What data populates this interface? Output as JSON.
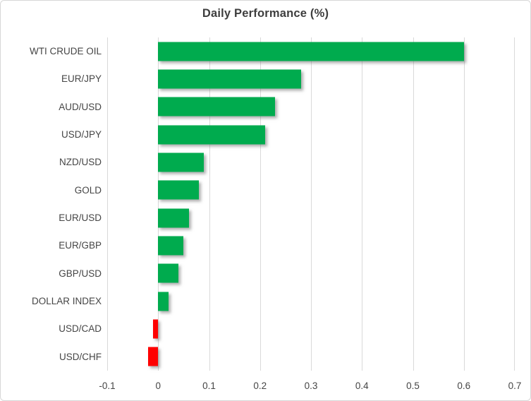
{
  "frame": {
    "background": "#ffffff",
    "border_color": "#d7d7d7"
  },
  "chart_data": {
    "type": "bar",
    "orientation": "horizontal",
    "title": "Daily Performance (%)",
    "categories": [
      "WTI CRUDE OIL",
      "EUR/JPY",
      "AUD/USD",
      "USD/JPY",
      "NZD/USD",
      "GOLD",
      "EUR/USD",
      "EUR/GBP",
      "GBP/USD",
      "DOLLAR INDEX",
      "USD/CAD",
      "USD/CHF"
    ],
    "values": [
      0.6,
      0.28,
      0.23,
      0.21,
      0.09,
      0.08,
      0.06,
      0.05,
      0.04,
      0.02,
      -0.01,
      -0.02
    ],
    "xlim": [
      -0.1,
      0.7
    ],
    "x_ticks": [
      -0.1,
      0,
      0.1,
      0.2,
      0.3,
      0.4,
      0.5,
      0.6,
      0.7
    ],
    "x_tick_labels": [
      "-0.1",
      "0",
      "0.1",
      "0.2",
      "0.3",
      "0.4",
      "0.5",
      "0.6",
      "0.7"
    ],
    "grid": "vertical-on",
    "legend": "none",
    "positive_color": "#00ab4e",
    "negative_color": "#fe0000",
    "gridline_color": "#d9d9d9",
    "tick_text_color": "#454545",
    "title_color": "#3e3e3e"
  }
}
